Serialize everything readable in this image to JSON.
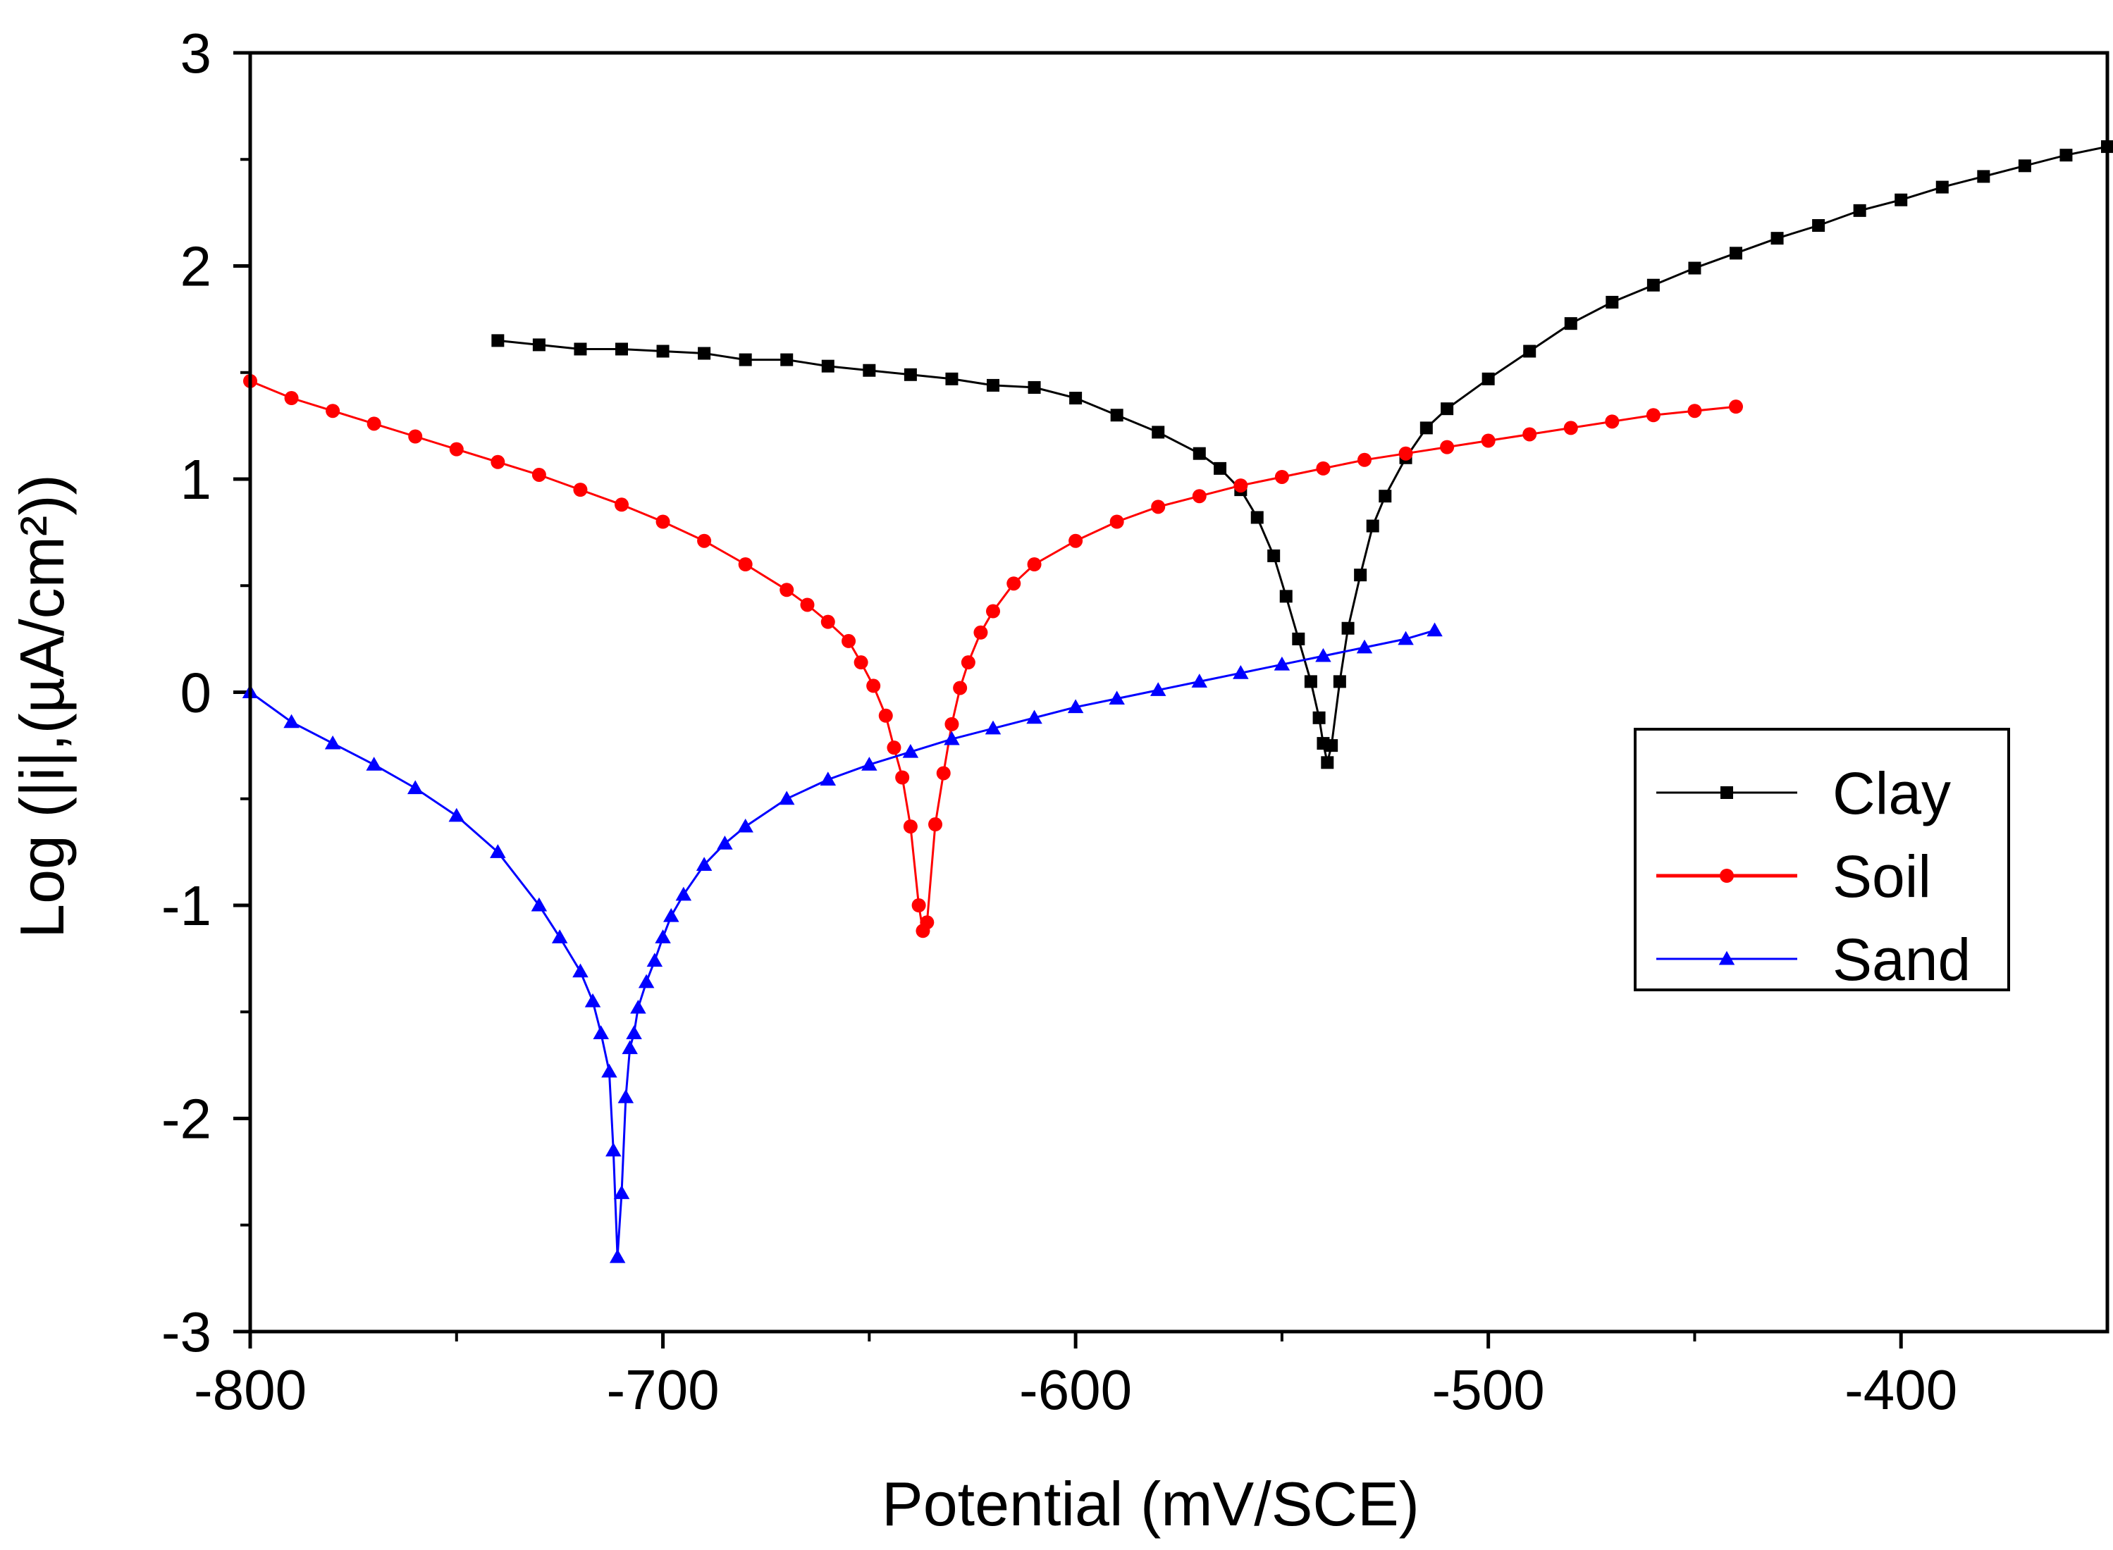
{
  "chart_data": {
    "type": "line",
    "title": "",
    "xlabel": "Potential (mV/SCE)",
    "ylabel": "Log (|i|,(µA/cm²))",
    "xlim": [
      -800,
      -350
    ],
    "ylim": [
      -3,
      3
    ],
    "x_ticks": [
      -800,
      -700,
      -600,
      -500,
      -400
    ],
    "x_tick_labels": [
      "-800",
      "-700",
      "-600",
      "-500",
      "-400"
    ],
    "y_ticks": [
      -3,
      -2,
      -1,
      0,
      1,
      2,
      3
    ],
    "y_tick_labels": [
      "-3",
      "-2",
      "-1",
      "0",
      "1",
      "2",
      "3"
    ],
    "grid": false,
    "legend_position": "right",
    "series": [
      {
        "name": "Clay",
        "color": "#000000",
        "marker": "square",
        "x": [
          -740,
          -730,
          -720,
          -710,
          -700,
          -690,
          -680,
          -670,
          -660,
          -650,
          -640,
          -630,
          -620,
          -610,
          -600,
          -590,
          -580,
          -570,
          -565,
          -560,
          -556,
          -552,
          -549,
          -546,
          -543,
          -541,
          -540,
          -539,
          -538,
          -536,
          -534,
          -531,
          -528,
          -525,
          -520,
          -515,
          -510,
          -500,
          -490,
          -480,
          -470,
          -460,
          -450,
          -440,
          -430,
          -420,
          -410,
          -400,
          -390,
          -380,
          -370,
          -360,
          -350
        ],
        "y": [
          1.65,
          1.63,
          1.61,
          1.61,
          1.6,
          1.59,
          1.56,
          1.56,
          1.53,
          1.51,
          1.49,
          1.47,
          1.44,
          1.43,
          1.38,
          1.3,
          1.22,
          1.12,
          1.05,
          0.95,
          0.82,
          0.64,
          0.45,
          0.25,
          0.05,
          -0.12,
          -0.24,
          -0.33,
          -0.25,
          0.05,
          0.3,
          0.55,
          0.78,
          0.92,
          1.1,
          1.24,
          1.33,
          1.47,
          1.6,
          1.73,
          1.83,
          1.91,
          1.99,
          2.06,
          2.13,
          2.19,
          2.26,
          2.31,
          2.37,
          2.42,
          2.47,
          2.52,
          2.56
        ]
      },
      {
        "name": "Soil",
        "color": "#ff0000",
        "marker": "circle",
        "x": [
          -800,
          -790,
          -780,
          -770,
          -760,
          -750,
          -740,
          -730,
          -720,
          -710,
          -700,
          -690,
          -680,
          -670,
          -665,
          -660,
          -655,
          -652,
          -649,
          -646,
          -644,
          -642,
          -640,
          -638,
          -637,
          -636,
          -634,
          -632,
          -630,
          -628,
          -626,
          -623,
          -620,
          -615,
          -610,
          -600,
          -590,
          -580,
          -570,
          -560,
          -550,
          -540,
          -530,
          -520,
          -510,
          -500,
          -490,
          -480,
          -470,
          -460,
          -450,
          -440
        ],
        "y": [
          1.46,
          1.38,
          1.32,
          1.26,
          1.2,
          1.14,
          1.08,
          1.02,
          0.95,
          0.88,
          0.8,
          0.71,
          0.6,
          0.48,
          0.41,
          0.33,
          0.24,
          0.14,
          0.03,
          -0.11,
          -0.26,
          -0.4,
          -0.63,
          -1.0,
          -1.12,
          -1.08,
          -0.62,
          -0.38,
          -0.15,
          0.02,
          0.14,
          0.28,
          0.38,
          0.51,
          0.6,
          0.71,
          0.8,
          0.87,
          0.92,
          0.97,
          1.01,
          1.05,
          1.09,
          1.12,
          1.15,
          1.18,
          1.21,
          1.24,
          1.27,
          1.3,
          1.32,
          1.34
        ]
      },
      {
        "name": "Sand",
        "color": "#0000ff",
        "marker": "triangle",
        "x": [
          -800,
          -790,
          -780,
          -770,
          -760,
          -750,
          -740,
          -730,
          -725,
          -720,
          -717,
          -715,
          -713,
          -712,
          -711,
          -710,
          -709,
          -708,
          -707,
          -706,
          -704,
          -702,
          -700,
          -698,
          -695,
          -690,
          -685,
          -680,
          -670,
          -660,
          -650,
          -640,
          -630,
          -620,
          -610,
          -600,
          -590,
          -580,
          -570,
          -560,
          -550,
          -540,
          -530,
          -520,
          -513
        ],
        "y": [
          0.0,
          -0.14,
          -0.24,
          -0.34,
          -0.45,
          -0.58,
          -0.75,
          -1.0,
          -1.15,
          -1.31,
          -1.45,
          -1.6,
          -1.78,
          -2.15,
          -2.65,
          -2.35,
          -1.9,
          -1.67,
          -1.6,
          -1.48,
          -1.36,
          -1.26,
          -1.15,
          -1.05,
          -0.95,
          -0.81,
          -0.71,
          -0.63,
          -0.5,
          -0.41,
          -0.34,
          -0.28,
          -0.22,
          -0.17,
          -0.12,
          -0.07,
          -0.03,
          0.01,
          0.05,
          0.09,
          0.13,
          0.17,
          0.21,
          0.25,
          0.29
        ]
      }
    ]
  }
}
